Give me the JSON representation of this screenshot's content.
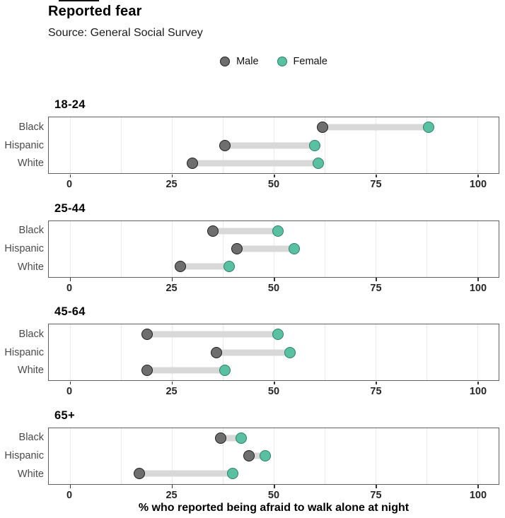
{
  "title": "Reported fear",
  "subtitle": "Source: General Social Survey",
  "legend": {
    "male_label": "Male",
    "female_label": "Female"
  },
  "colors": {
    "male_fill": "#6e6e6e",
    "male_stroke": "#1f1f1f",
    "female_fill": "#59c1a1",
    "female_stroke": "#2e7f68",
    "connector": "#d8d8d8",
    "gridline": "#e9e9e9",
    "panel_border": "#606060",
    "tick": "#333333",
    "y_label": "#4a4a4a",
    "x_tick_label": "#262626"
  },
  "chart_data": {
    "type": "scatter",
    "variant": "dumbbell",
    "title": "Reported fear",
    "subtitle": "Source: General Social Survey",
    "xlabel": "% who reported being afraid to walk alone at night",
    "xlim": [
      0,
      100
    ],
    "xticks": [
      0,
      25,
      50,
      75,
      100
    ],
    "minor_grid_step": 12.5,
    "grid": true,
    "legend_entries": [
      "Male",
      "Female"
    ],
    "legend_position": "top-center",
    "facet_by": "age group",
    "group_by": "race/ethnicity",
    "facets": [
      {
        "label": "18-24",
        "rows": [
          {
            "group": "Black",
            "male": 62,
            "female": 88
          },
          {
            "group": "Hispanic",
            "male": 38,
            "female": 60
          },
          {
            "group": "White",
            "male": 30,
            "female": 61
          }
        ]
      },
      {
        "label": "25-44",
        "rows": [
          {
            "group": "Black",
            "male": 35,
            "female": 51
          },
          {
            "group": "Hispanic",
            "male": 41,
            "female": 55
          },
          {
            "group": "White",
            "male": 27,
            "female": 39
          }
        ]
      },
      {
        "label": "45-64",
        "rows": [
          {
            "group": "Black",
            "male": 19,
            "female": 51
          },
          {
            "group": "Hispanic",
            "male": 36,
            "female": 54
          },
          {
            "group": "White",
            "male": 19,
            "female": 38
          }
        ]
      },
      {
        "label": "65+",
        "rows": [
          {
            "group": "Black",
            "male": 37,
            "female": 42
          },
          {
            "group": "Hispanic",
            "male": 44,
            "female": 48
          },
          {
            "group": "White",
            "male": 17,
            "female": 40
          }
        ]
      }
    ]
  }
}
